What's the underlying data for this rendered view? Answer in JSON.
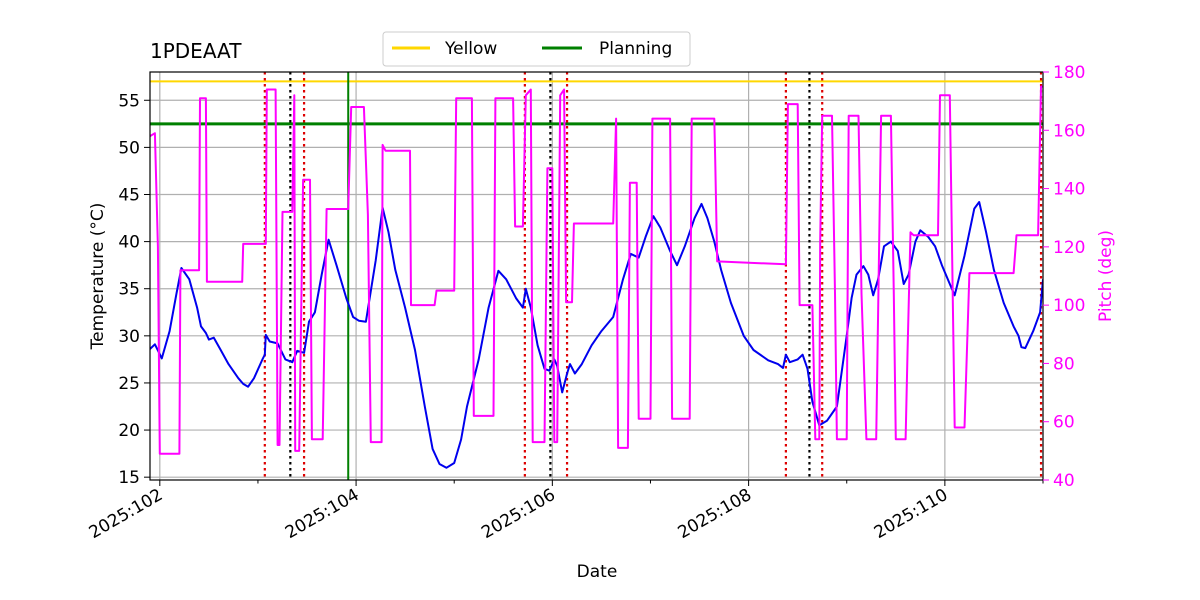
{
  "chart_data": {
    "type": "line",
    "title": "1PDEAAT",
    "xlabel": "Date",
    "ylabel_left": "Temperature ($^\\circ$C)",
    "ylabel_right": "Pitch (deg)",
    "xlim": [
      101.9,
      111.0
    ],
    "ylim_left": [
      14.7,
      58.0
    ],
    "ylim_right": [
      40,
      180
    ],
    "x_ticks": [
      102,
      104,
      106,
      108,
      110
    ],
    "x_tick_labels": [
      "2025:102",
      "2025:104",
      "2025:106",
      "2025:108",
      "2025:110"
    ],
    "y_ticks_left": [
      15,
      20,
      25,
      30,
      35,
      40,
      45,
      50,
      55
    ],
    "y_ticks_right": [
      40,
      60,
      80,
      100,
      120,
      140,
      160,
      180
    ],
    "grid": true,
    "legend_placement": "top-center",
    "colors": {
      "temperature": "#0000ee",
      "pitch": "#ff00ff",
      "yellow": "#ffd700",
      "planning": "#008000",
      "red_events": "#dd0000",
      "black_events": "#000000"
    },
    "legend": [
      {
        "label": "Yellow",
        "color": "#ffd700"
      },
      {
        "label": "Planning",
        "color": "#008000"
      }
    ],
    "hlines": [
      {
        "name": "Yellow",
        "y": 57.0,
        "color": "#ffd700"
      },
      {
        "name": "Planning",
        "y": 52.5,
        "color": "#008000"
      }
    ],
    "planning_vline": {
      "x": 103.92,
      "color": "#008000"
    },
    "red_event_x": [
      103.07,
      103.47,
      105.72,
      106.15,
      108.38,
      108.75,
      110.98
    ],
    "black_event_x": [
      103.33,
      105.98,
      108.62
    ],
    "series": [
      {
        "name": "",
        "axis": "left",
        "color": "#0000ee",
        "points": [
          [
            101.9,
            28.6
          ],
          [
            101.95,
            29.1
          ],
          [
            102.02,
            27.6
          ],
          [
            102.1,
            30.5
          ],
          [
            102.17,
            34.5
          ],
          [
            102.22,
            37.2
          ],
          [
            102.3,
            36.0
          ],
          [
            102.38,
            33.0
          ],
          [
            102.42,
            31.0
          ],
          [
            102.47,
            30.3
          ],
          [
            102.5,
            29.6
          ],
          [
            102.55,
            29.8
          ],
          [
            102.62,
            28.5
          ],
          [
            102.7,
            27.0
          ],
          [
            102.8,
            25.5
          ],
          [
            102.85,
            24.9
          ],
          [
            102.9,
            24.6
          ],
          [
            102.96,
            25.5
          ],
          [
            103.05,
            27.6
          ],
          [
            103.07,
            28.0
          ],
          [
            103.08,
            30.1
          ],
          [
            103.12,
            29.4
          ],
          [
            103.2,
            29.2
          ],
          [
            103.28,
            27.5
          ],
          [
            103.35,
            27.2
          ],
          [
            103.4,
            28.4
          ],
          [
            103.47,
            28.2
          ],
          [
            103.52,
            31.5
          ],
          [
            103.58,
            32.5
          ],
          [
            103.65,
            36.5
          ],
          [
            103.72,
            40.2
          ],
          [
            103.8,
            37.5
          ],
          [
            103.9,
            34.0
          ],
          [
            103.97,
            32.0
          ],
          [
            104.03,
            31.6
          ],
          [
            104.1,
            31.5
          ],
          [
            104.2,
            38.0
          ],
          [
            104.27,
            43.6
          ],
          [
            104.33,
            41.0
          ],
          [
            104.4,
            37.0
          ],
          [
            104.5,
            33.0
          ],
          [
            104.6,
            28.5
          ],
          [
            104.7,
            22.5
          ],
          [
            104.78,
            18.0
          ],
          [
            104.85,
            16.4
          ],
          [
            104.92,
            16.0
          ],
          [
            105.0,
            16.5
          ],
          [
            105.07,
            19.0
          ],
          [
            105.13,
            22.5
          ],
          [
            105.25,
            27.5
          ],
          [
            105.35,
            33.0
          ],
          [
            105.45,
            36.9
          ],
          [
            105.53,
            36.0
          ],
          [
            105.63,
            34.0
          ],
          [
            105.7,
            33.0
          ],
          [
            105.73,
            35.0
          ],
          [
            105.78,
            33.0
          ],
          [
            105.85,
            29.0
          ],
          [
            105.92,
            26.5
          ],
          [
            105.97,
            26.3
          ],
          [
            106.02,
            27.5
          ],
          [
            106.05,
            26.8
          ],
          [
            106.1,
            24.0
          ],
          [
            106.15,
            26.0
          ],
          [
            106.18,
            27.0
          ],
          [
            106.23,
            26.0
          ],
          [
            106.3,
            27.0
          ],
          [
            106.4,
            29.0
          ],
          [
            106.5,
            30.5
          ],
          [
            106.62,
            32.0
          ],
          [
            106.72,
            36.0
          ],
          [
            106.8,
            38.7
          ],
          [
            106.88,
            38.3
          ],
          [
            106.95,
            40.5
          ],
          [
            107.03,
            42.7
          ],
          [
            107.1,
            41.5
          ],
          [
            107.2,
            39.0
          ],
          [
            107.27,
            37.5
          ],
          [
            107.35,
            39.5
          ],
          [
            107.45,
            42.5
          ],
          [
            107.52,
            44.0
          ],
          [
            107.58,
            42.5
          ],
          [
            107.65,
            40.0
          ],
          [
            107.72,
            37.0
          ],
          [
            107.82,
            33.5
          ],
          [
            107.95,
            30.0
          ],
          [
            108.05,
            28.5
          ],
          [
            108.2,
            27.4
          ],
          [
            108.3,
            27.0
          ],
          [
            108.35,
            26.6
          ],
          [
            108.38,
            28.0
          ],
          [
            108.42,
            27.2
          ],
          [
            108.5,
            27.5
          ],
          [
            108.55,
            28.0
          ],
          [
            108.6,
            26.5
          ],
          [
            108.65,
            23.0
          ],
          [
            108.72,
            20.5
          ],
          [
            108.8,
            21.0
          ],
          [
            108.9,
            22.5
          ],
          [
            109.0,
            30.0
          ],
          [
            109.05,
            34.0
          ],
          [
            109.1,
            36.5
          ],
          [
            109.17,
            37.4
          ],
          [
            109.22,
            36.5
          ],
          [
            109.27,
            34.3
          ],
          [
            109.32,
            36.0
          ],
          [
            109.38,
            39.5
          ],
          [
            109.45,
            40.0
          ],
          [
            109.52,
            39.0
          ],
          [
            109.58,
            35.5
          ],
          [
            109.63,
            36.5
          ],
          [
            109.7,
            40.0
          ],
          [
            109.75,
            41.2
          ],
          [
            109.83,
            40.5
          ],
          [
            109.9,
            39.5
          ],
          [
            109.97,
            37.5
          ],
          [
            110.05,
            35.5
          ],
          [
            110.1,
            34.3
          ],
          [
            110.2,
            38.5
          ],
          [
            110.3,
            43.5
          ],
          [
            110.35,
            44.2
          ],
          [
            110.42,
            41.0
          ],
          [
            110.5,
            37.0
          ],
          [
            110.6,
            33.5
          ],
          [
            110.7,
            31.0
          ],
          [
            110.75,
            30.0
          ],
          [
            110.78,
            28.8
          ],
          [
            110.82,
            28.7
          ],
          [
            110.9,
            30.5
          ],
          [
            110.97,
            32.5
          ],
          [
            111.0,
            36.0
          ]
        ]
      },
      {
        "name": "",
        "axis": "right",
        "color": "#ff00ff",
        "points": [
          [
            101.9,
            158
          ],
          [
            101.95,
            159
          ],
          [
            101.98,
            120
          ],
          [
            102.0,
            49
          ],
          [
            102.1,
            49
          ],
          [
            102.2,
            49
          ],
          [
            102.21,
            112
          ],
          [
            102.38,
            112
          ],
          [
            102.4,
            112
          ],
          [
            102.41,
            171
          ],
          [
            102.47,
            171
          ],
          [
            102.48,
            108
          ],
          [
            102.6,
            108
          ],
          [
            102.75,
            108
          ],
          [
            102.84,
            108
          ],
          [
            102.85,
            121
          ],
          [
            103.05,
            121
          ],
          [
            103.08,
            121
          ],
          [
            103.09,
            174
          ],
          [
            103.18,
            174
          ],
          [
            103.2,
            52
          ],
          [
            103.22,
            52
          ],
          [
            103.25,
            132
          ],
          [
            103.35,
            132
          ],
          [
            103.37,
            172
          ],
          [
            103.38,
            50
          ],
          [
            103.42,
            50
          ],
          [
            103.46,
            143
          ],
          [
            103.53,
            143
          ],
          [
            103.55,
            54
          ],
          [
            103.66,
            54
          ],
          [
            103.7,
            133
          ],
          [
            103.92,
            133
          ],
          [
            103.95,
            168
          ],
          [
            104.08,
            168
          ],
          [
            104.12,
            131
          ],
          [
            104.15,
            53
          ],
          [
            104.26,
            53
          ],
          [
            104.27,
            155
          ],
          [
            104.3,
            153
          ],
          [
            104.55,
            153
          ],
          [
            104.56,
            100
          ],
          [
            104.8,
            100
          ],
          [
            104.82,
            105
          ],
          [
            105.0,
            105
          ],
          [
            105.02,
            171
          ],
          [
            105.18,
            171
          ],
          [
            105.2,
            62
          ],
          [
            105.4,
            62
          ],
          [
            105.42,
            171
          ],
          [
            105.6,
            171
          ],
          [
            105.62,
            127
          ],
          [
            105.7,
            127
          ],
          [
            105.73,
            172
          ],
          [
            105.78,
            174
          ],
          [
            105.8,
            53
          ],
          [
            105.92,
            53
          ],
          [
            105.95,
            147
          ],
          [
            106.0,
            147
          ],
          [
            106.02,
            53
          ],
          [
            106.05,
            53
          ],
          [
            106.08,
            172
          ],
          [
            106.12,
            174
          ],
          [
            106.14,
            101
          ],
          [
            106.2,
            101
          ],
          [
            106.22,
            128
          ],
          [
            106.62,
            128
          ],
          [
            106.65,
            164
          ],
          [
            106.67,
            51
          ],
          [
            106.77,
            51
          ],
          [
            106.79,
            142
          ],
          [
            106.86,
            142
          ],
          [
            106.88,
            61
          ],
          [
            107.0,
            61
          ],
          [
            107.02,
            164
          ],
          [
            107.2,
            164
          ],
          [
            107.22,
            61
          ],
          [
            107.4,
            61
          ],
          [
            107.42,
            164
          ],
          [
            107.58,
            164
          ],
          [
            107.6,
            164
          ],
          [
            107.65,
            164
          ],
          [
            107.66,
            150
          ],
          [
            107.68,
            115
          ],
          [
            108.38,
            114
          ],
          [
            108.4,
            169
          ],
          [
            108.5,
            169
          ],
          [
            108.52,
            100
          ],
          [
            108.65,
            100
          ],
          [
            108.68,
            54
          ],
          [
            108.72,
            54
          ],
          [
            108.73,
            122
          ],
          [
            108.75,
            165
          ],
          [
            108.85,
            165
          ],
          [
            108.88,
            104
          ],
          [
            108.9,
            54
          ],
          [
            109.0,
            54
          ],
          [
            109.02,
            165
          ],
          [
            109.12,
            165
          ],
          [
            109.15,
            104
          ],
          [
            109.2,
            54
          ],
          [
            109.3,
            54
          ],
          [
            109.35,
            165
          ],
          [
            109.45,
            165
          ],
          [
            109.48,
            104
          ],
          [
            109.5,
            54
          ],
          [
            109.6,
            54
          ],
          [
            109.62,
            85
          ],
          [
            109.65,
            125
          ],
          [
            109.68,
            124
          ],
          [
            109.8,
            124
          ],
          [
            109.93,
            124
          ],
          [
            109.95,
            172
          ],
          [
            110.05,
            172
          ],
          [
            110.08,
            104
          ],
          [
            110.1,
            58
          ],
          [
            110.2,
            58
          ],
          [
            110.25,
            111
          ],
          [
            110.5,
            111
          ],
          [
            110.7,
            111
          ],
          [
            110.73,
            124
          ],
          [
            110.95,
            124
          ],
          [
            110.98,
            175
          ],
          [
            111.0,
            175
          ]
        ]
      }
    ]
  }
}
